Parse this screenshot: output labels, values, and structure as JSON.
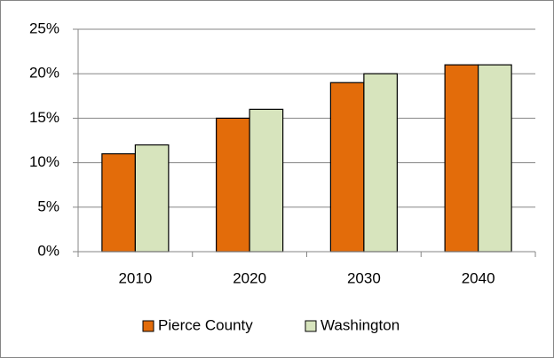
{
  "chart_data": {
    "type": "bar",
    "categories": [
      "2010",
      "2020",
      "2030",
      "2040"
    ],
    "series": [
      {
        "name": "Pierce County",
        "color": "#e36c0a",
        "values": [
          11,
          15,
          19,
          21
        ]
      },
      {
        "name": "Washington",
        "color": "#d7e4bd",
        "values": [
          12,
          16,
          20,
          21
        ]
      }
    ],
    "ylim": [
      0,
      25
    ],
    "yticks": [
      {
        "value": 0,
        "label": "0%"
      },
      {
        "value": 5,
        "label": "5%"
      },
      {
        "value": 10,
        "label": "10%"
      },
      {
        "value": 15,
        "label": "15%"
      },
      {
        "value": 20,
        "label": "20%"
      },
      {
        "value": 25,
        "label": "25%"
      }
    ],
    "grid": true,
    "legend": "bottom"
  }
}
